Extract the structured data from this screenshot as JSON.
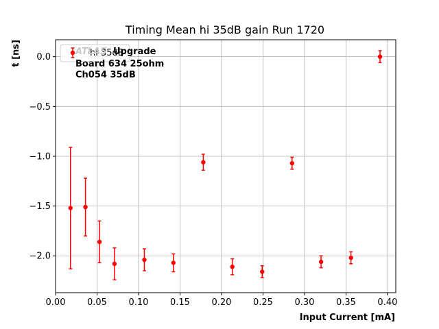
{
  "chart_data": {
    "type": "scatter",
    "title": "Timing Mean hi 35dB gain Run 1720",
    "xlabel": "Input Current [mA]",
    "ylabel": "t [ns]",
    "xlim": [
      0.0,
      0.41
    ],
    "ylim": [
      -2.37,
      0.17
    ],
    "xticks": [
      0.0,
      0.05,
      0.1,
      0.15,
      0.2,
      0.25,
      0.3,
      0.35,
      0.4
    ],
    "xtick_labels": [
      "0.00",
      "0.05",
      "0.10",
      "0.15",
      "0.20",
      "0.25",
      "0.30",
      "0.35",
      "0.40"
    ],
    "yticks": [
      0.0,
      -0.5,
      -1.0,
      -1.5,
      -2.0
    ],
    "ytick_labels": [
      "0.0",
      "−0.5",
      "−1.0",
      "−1.5",
      "−2.0"
    ],
    "grid": true,
    "legend_position": "top-left",
    "series": [
      {
        "name": "hi 35dB",
        "color": "#ff0000",
        "marker": "circle",
        "points": [
          {
            "x": 0.018,
            "y": -1.52,
            "err": 0.61
          },
          {
            "x": 0.036,
            "y": -1.51,
            "err": 0.29
          },
          {
            "x": 0.053,
            "y": -1.86,
            "err": 0.21
          },
          {
            "x": 0.071,
            "y": -2.08,
            "err": 0.16
          },
          {
            "x": 0.107,
            "y": -2.04,
            "err": 0.11
          },
          {
            "x": 0.142,
            "y": -2.07,
            "err": 0.09
          },
          {
            "x": 0.178,
            "y": -1.06,
            "err": 0.08
          },
          {
            "x": 0.213,
            "y": -2.11,
            "err": 0.08
          },
          {
            "x": 0.249,
            "y": -2.16,
            "err": 0.06
          },
          {
            "x": 0.285,
            "y": -1.07,
            "err": 0.06
          },
          {
            "x": 0.32,
            "y": -2.06,
            "err": 0.06
          },
          {
            "x": 0.356,
            "y": -2.02,
            "err": 0.06
          },
          {
            "x": 0.391,
            "y": 0.0,
            "err": 0.06
          }
        ]
      }
    ],
    "annotations": {
      "line1_faint": "ATLAS",
      "line1": "Upgrade",
      "line2": "Board 634 25ohm",
      "line3": "Ch054 35dB"
    }
  }
}
